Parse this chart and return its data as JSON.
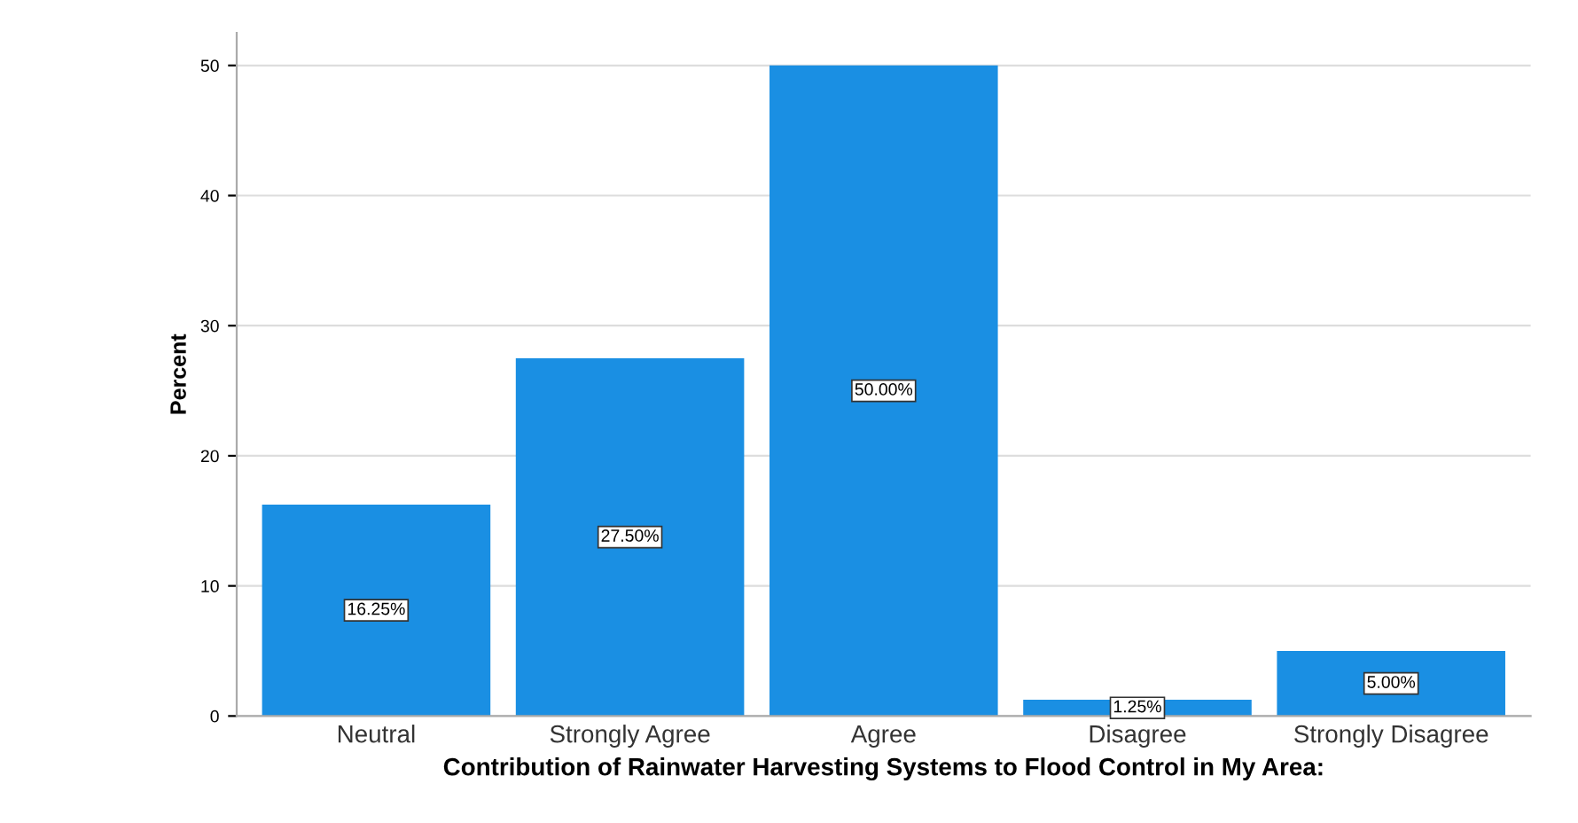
{
  "chart_data": {
    "type": "bar",
    "xlabel": "Contribution of Rainwater Harvesting Systems to Flood Control in My Area:",
    "ylabel": "Percent",
    "categories": [
      "Neutral",
      "Strongly Agree",
      "Agree",
      "Disagree",
      "Strongly Disagree"
    ],
    "values": [
      16.25,
      27.5,
      50.0,
      1.25,
      5.0
    ],
    "value_labels": [
      "16.25%",
      "27.50%",
      "50.00%",
      "1.25%",
      "5.00%"
    ],
    "color": "#1a8fe3",
    "ylim": [
      0,
      52.5
    ],
    "yticks": [
      0,
      10,
      20,
      30,
      40,
      50
    ],
    "grid": "y"
  }
}
